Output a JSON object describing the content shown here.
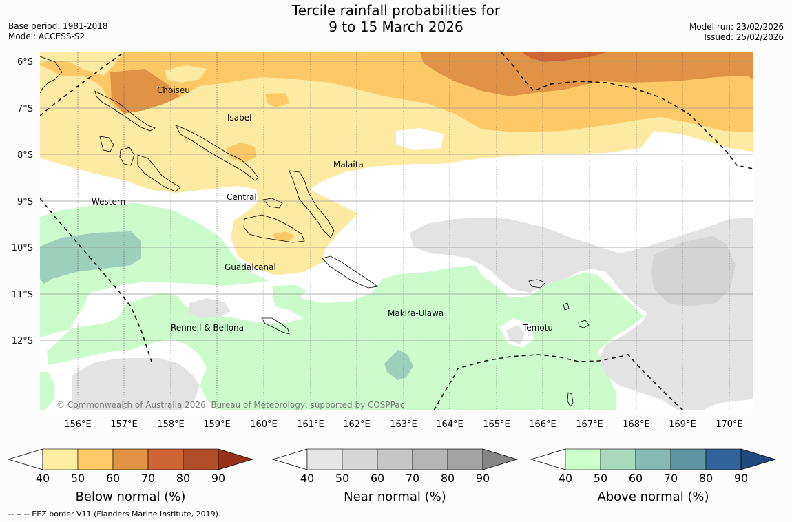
{
  "header": {
    "title_line1": "Tercile rainfall probabilities for",
    "title_line2": "9 to 15 March 2026",
    "base_period": "Base period: 1981-2018",
    "model": "Model: ACCESS-S2",
    "model_run": "Model run: 23/02/2026",
    "issued": "Issued: 25/02/2026"
  },
  "map": {
    "lat_labels": [
      "6°S",
      "7°S",
      "8°S",
      "9°S",
      "10°S",
      "11°S",
      "12°S"
    ],
    "lon_labels": [
      "156°E",
      "157°E",
      "158°E",
      "159°E",
      "160°E",
      "161°E",
      "162°E",
      "163°E",
      "164°E",
      "165°E",
      "166°E",
      "167°E",
      "168°E",
      "169°E",
      "170°E"
    ],
    "regions": [
      "Choiseul",
      "Isabel",
      "Malaita",
      "Central",
      "Western",
      "Guadalcanal",
      "Makira-Ulawa",
      "Rennell & Bellona",
      "Temotu"
    ],
    "copyright": "© Commonwealth of Australia 2026, Bureau of Meteorology, supported by COSPPac",
    "colors": {
      "below_50": "#fdeba3",
      "below_60": "#fdc966",
      "below_70": "#e09344",
      "near_40": "#e3e3e3",
      "near_50": "#d4d4d4",
      "above_40": "#ccfbcc",
      "above_60": "#9ccfbc",
      "land_outline": "#000000",
      "eez_border": "#000000"
    }
  },
  "colorbars": [
    {
      "title": "Below normal (%)",
      "ticks": [
        "40",
        "50",
        "60",
        "70",
        "80",
        "90"
      ],
      "colors": [
        "#ffeea2",
        "#ffc966",
        "#e09344",
        "#cd6534",
        "#b14e2a",
        "#973219"
      ]
    },
    {
      "title": "Near normal (%)",
      "ticks": [
        "40",
        "50",
        "60",
        "70",
        "80",
        "90"
      ],
      "colors": [
        "#e6e6e6",
        "#d6d6d6",
        "#c6c6c6",
        "#b4b4b4",
        "#a3a3a3",
        "#858585"
      ]
    },
    {
      "title": "Above normal (%)",
      "ticks": [
        "40",
        "50",
        "60",
        "70",
        "80",
        "90"
      ],
      "colors": [
        "#ccffcc",
        "#a7d9bd",
        "#84bab3",
        "#5f95a0",
        "#32649b",
        "#1e4a80"
      ]
    }
  ],
  "footer": {
    "eez_legend": "--  --  -- EEZ border V11 (Flanders Marine Institute, 2019)."
  }
}
